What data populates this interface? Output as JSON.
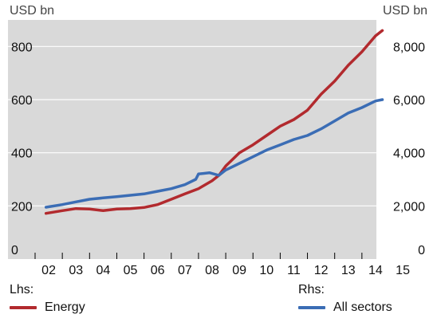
{
  "chart_data": {
    "type": "line",
    "left_axis": {
      "unit_label": "USD bn",
      "ylim": [
        0,
        900
      ],
      "ticks": [
        0,
        200,
        400,
        600,
        800
      ],
      "tick_labels": [
        "0",
        "200",
        "400",
        "600",
        "800"
      ]
    },
    "right_axis": {
      "unit_label": "USD bn",
      "ylim": [
        0,
        9000
      ],
      "ticks": [
        0,
        2000,
        4000,
        6000,
        8000
      ],
      "tick_labels": [
        "0",
        "2,000",
        "4,000",
        "6,000",
        "8,000"
      ]
    },
    "xlim": [
      2002,
      2015
    ],
    "x_ticks": [
      2002,
      2003,
      2004,
      2005,
      2006,
      2007,
      2008,
      2009,
      2010,
      2011,
      2012,
      2013,
      2014,
      2015
    ],
    "x_tick_labels": [
      "02",
      "03",
      "04",
      "05",
      "06",
      "07",
      "08",
      "09",
      "10",
      "11",
      "12",
      "13",
      "14",
      "15"
    ],
    "grid": "horizontal",
    "series": [
      {
        "name": "Energy",
        "axis": "left",
        "color": "#b22a2e",
        "x": [
          2002.4,
          2003.0,
          2003.5,
          2004.0,
          2004.5,
          2005.0,
          2005.5,
          2006.0,
          2006.5,
          2007.0,
          2007.5,
          2008.0,
          2008.5,
          2008.75,
          2009.0,
          2009.5,
          2010.0,
          2010.5,
          2011.0,
          2011.5,
          2012.0,
          2012.5,
          2013.0,
          2013.5,
          2014.0,
          2014.5,
          2014.75
        ],
        "y": [
          172,
          182,
          190,
          188,
          182,
          188,
          190,
          194,
          205,
          225,
          245,
          265,
          295,
          315,
          350,
          400,
          430,
          465,
          500,
          525,
          560,
          620,
          670,
          730,
          780,
          840,
          860
        ]
      },
      {
        "name": "All sectors",
        "axis": "right",
        "color": "#3b6db5",
        "x": [
          2002.4,
          2003.0,
          2003.5,
          2004.0,
          2004.5,
          2005.0,
          2005.5,
          2006.0,
          2006.5,
          2007.0,
          2007.5,
          2007.9,
          2008.0,
          2008.4,
          2008.75,
          2009.0,
          2009.5,
          2010.0,
          2010.5,
          2011.0,
          2011.5,
          2012.0,
          2012.5,
          2013.0,
          2013.5,
          2014.0,
          2014.5,
          2014.75
        ],
        "y": [
          1950,
          2050,
          2150,
          2250,
          2300,
          2350,
          2400,
          2450,
          2550,
          2650,
          2800,
          3000,
          3200,
          3250,
          3150,
          3350,
          3600,
          3850,
          4100,
          4300,
          4500,
          4650,
          4900,
          5200,
          5500,
          5700,
          5950,
          6000
        ]
      }
    ]
  },
  "legend": {
    "lhs_heading": "Lhs:",
    "rhs_heading": "Rhs:",
    "energy_label": "Energy",
    "all_sectors_label": "All sectors"
  },
  "colors": {
    "plot_background": "#d9d9d9",
    "gridline": "#ffffff",
    "energy": "#b22a2e",
    "all_sectors": "#3b6db5"
  }
}
